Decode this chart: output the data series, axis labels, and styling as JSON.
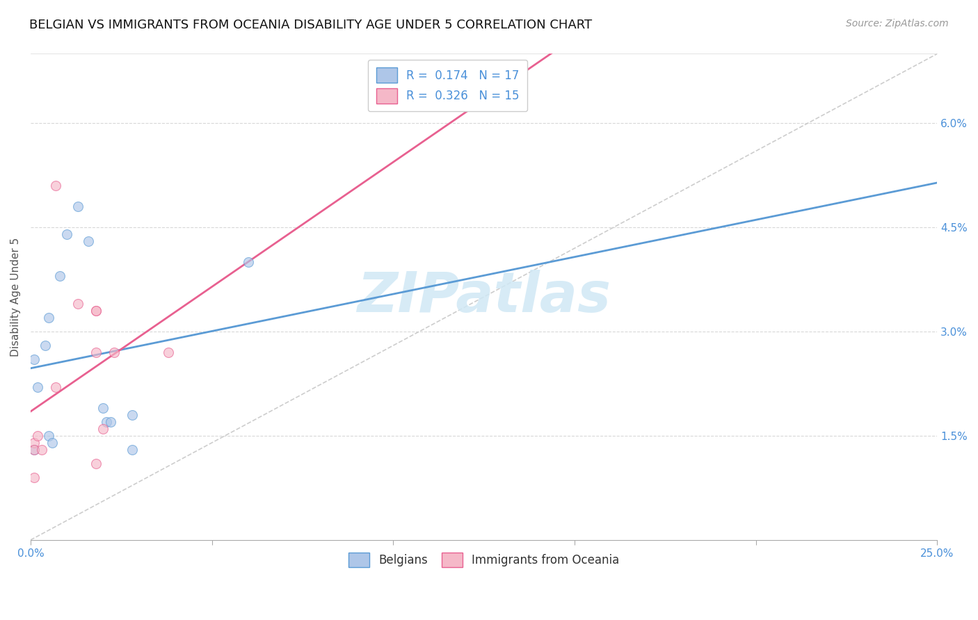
{
  "title": "BELGIAN VS IMMIGRANTS FROM OCEANIA DISABILITY AGE UNDER 5 CORRELATION CHART",
  "source": "Source: ZipAtlas.com",
  "ylabel": "Disability Age Under 5",
  "xlim": [
    0.0,
    0.25
  ],
  "ylim": [
    0.0,
    0.07
  ],
  "yticks": [
    0.015,
    0.03,
    0.045,
    0.06
  ],
  "ytick_labels": [
    "1.5%",
    "3.0%",
    "4.5%",
    "6.0%"
  ],
  "xticks": [
    0.0,
    0.05,
    0.1,
    0.15,
    0.2,
    0.25
  ],
  "xtick_labels": [
    "0.0%",
    "",
    "",
    "",
    "",
    "25.0%"
  ],
  "belgians_x": [
    0.001,
    0.005,
    0.008,
    0.01,
    0.013,
    0.016,
    0.002,
    0.004,
    0.02,
    0.021,
    0.022,
    0.028,
    0.005,
    0.006,
    0.028,
    0.06,
    0.001
  ],
  "belgians_y": [
    0.026,
    0.032,
    0.038,
    0.044,
    0.048,
    0.043,
    0.022,
    0.028,
    0.019,
    0.017,
    0.017,
    0.018,
    0.015,
    0.014,
    0.013,
    0.04,
    0.013
  ],
  "oceania_x": [
    0.001,
    0.001,
    0.002,
    0.003,
    0.013,
    0.018,
    0.018,
    0.007,
    0.007,
    0.018,
    0.023,
    0.038,
    0.02,
    0.001,
    0.018
  ],
  "oceania_y": [
    0.014,
    0.013,
    0.015,
    0.013,
    0.034,
    0.033,
    0.033,
    0.022,
    0.051,
    0.027,
    0.027,
    0.027,
    0.016,
    0.009,
    0.011
  ],
  "belgians_color": "#aec6e8",
  "oceania_color": "#f5b8c8",
  "belgians_edge_color": "#5b9bd5",
  "oceania_edge_color": "#e86090",
  "belgians_line_color": "#5b9bd5",
  "oceania_line_color": "#e86090",
  "diagonal_color": "#c8c8c8",
  "watermark": "ZIPatlas",
  "watermark_color": "#d0e8f5",
  "legend1_label": "Belgians",
  "legend2_label": "Immigrants from Oceania",
  "marker_size": 100,
  "marker_alpha": 0.65,
  "title_fontsize": 13,
  "axis_label_fontsize": 11,
  "tick_fontsize": 11,
  "source_fontsize": 10,
  "legend_fontsize": 12
}
